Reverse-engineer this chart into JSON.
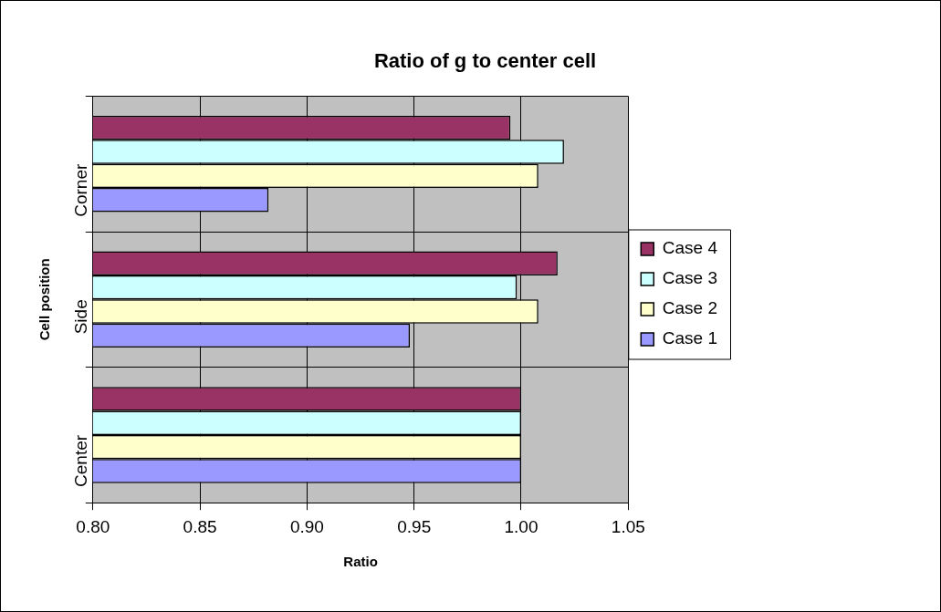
{
  "chart_data": {
    "type": "bar",
    "orientation": "horizontal",
    "title": "Ratio of g to center cell",
    "xlabel": "Ratio",
    "ylabel": "Cell position",
    "categories": [
      "Corner",
      "Side",
      "Center"
    ],
    "series": [
      {
        "name": "Case 4",
        "color": "#993366",
        "values": [
          0.995,
          1.017,
          1.0
        ]
      },
      {
        "name": "Case 3",
        "color": "#ccffff",
        "values": [
          1.02,
          0.998,
          1.0
        ]
      },
      {
        "name": "Case 2",
        "color": "#ffffcc",
        "values": [
          1.008,
          1.008,
          1.0
        ]
      },
      {
        "name": "Case 1",
        "color": "#9999ff",
        "values": [
          0.882,
          0.948,
          1.0
        ]
      }
    ],
    "xlim": [
      0.8,
      1.05
    ],
    "xticks": [
      {
        "value": 0.8,
        "label": "0.80"
      },
      {
        "value": 0.85,
        "label": "0.85"
      },
      {
        "value": 0.9,
        "label": "0.90"
      },
      {
        "value": 0.95,
        "label": "0.95"
      },
      {
        "value": 1.0,
        "label": "1.00"
      },
      {
        "value": 1.05,
        "label": "1.05"
      }
    ],
    "grid": true,
    "legend": "right"
  }
}
